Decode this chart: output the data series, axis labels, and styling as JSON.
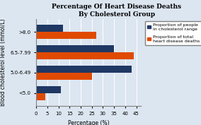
{
  "title": "Percentage Of Heart Disease Deaths\nBy Cholesterol Group",
  "categories": [
    "<5.0",
    "5.0-6.49",
    "6.5-7.99",
    ">8.0"
  ],
  "blue_values": [
    11,
    43,
    35,
    12
  ],
  "orange_values": [
    4,
    25,
    44,
    27
  ],
  "blue_color": "#1f3864",
  "orange_color": "#e04a00",
  "xlabel": "Percentage (%)",
  "ylabel": "Blood cholesterol level (mmol/L)",
  "xlim": [
    0,
    47
  ],
  "xticks": [
    0,
    5,
    10,
    15,
    20,
    25,
    30,
    35,
    40,
    45
  ],
  "legend_blue": "Proportion of people\nin cholesterol range",
  "legend_orange": "Proportion of total\nheart disease deaths",
  "background_color": "#dce6f1",
  "title_fontsize": 6.5,
  "axis_fontsize": 5.5,
  "tick_fontsize": 5,
  "legend_fontsize": 4.5
}
